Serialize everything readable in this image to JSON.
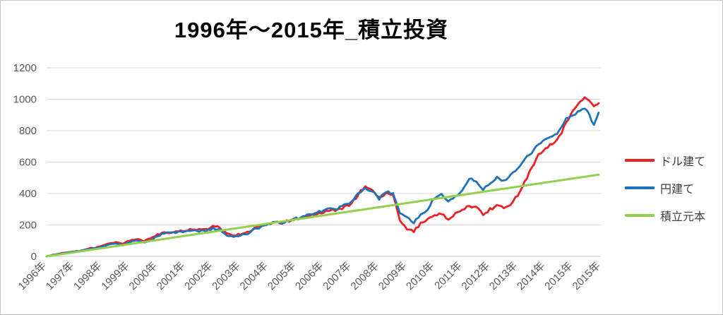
{
  "chart_data": {
    "type": "line",
    "title": "1996年～2015年_積立投資",
    "xlabel": "",
    "ylabel": "",
    "xlim": [
      1996,
      2016
    ],
    "ylim": [
      0,
      1200
    ],
    "y_ticks": [
      0,
      200,
      400,
      600,
      800,
      1000,
      1200
    ],
    "x_tick_labels": [
      "1996年",
      "1997年",
      "1998年",
      "1999年",
      "2000年",
      "2001年",
      "2002年",
      "2003年",
      "2004年",
      "2005年",
      "2006年",
      "2007年",
      "2008年",
      "2009年",
      "2010年",
      "2011年",
      "2012年",
      "2013年",
      "2014年",
      "2015年",
      "2015年"
    ],
    "grid": "horizontal",
    "legend_position": "right",
    "series": [
      {
        "name": "ドル建て",
        "color": "#ed2024",
        "stroke_width": 2.8,
        "noise_amplitude": 9,
        "x": [
          1996,
          1996.25,
          1996.5,
          1996.75,
          1997,
          1997.25,
          1997.5,
          1997.75,
          1998,
          1998.25,
          1998.5,
          1998.75,
          1999,
          1999.25,
          1999.5,
          1999.75,
          2000,
          2000.25,
          2000.5,
          2000.75,
          2001,
          2001.25,
          2001.5,
          2001.75,
          2002,
          2002.25,
          2002.5,
          2002.75,
          2003,
          2003.25,
          2003.5,
          2003.75,
          2004,
          2004.25,
          2004.5,
          2004.75,
          2005,
          2005.25,
          2005.5,
          2005.75,
          2006,
          2006.25,
          2006.5,
          2006.75,
          2007,
          2007.25,
          2007.5,
          2007.75,
          2008,
          2008.25,
          2008.5,
          2008.75,
          2009,
          2009.25,
          2009.5,
          2009.75,
          2010,
          2010.25,
          2010.5,
          2010.75,
          2011,
          2011.25,
          2011.5,
          2011.75,
          2012,
          2012.25,
          2012.5,
          2012.75,
          2013,
          2013.25,
          2013.5,
          2013.75,
          2014,
          2014.25,
          2014.5,
          2014.75,
          2015,
          2015.25,
          2015.5,
          2015.75,
          2015.92
        ],
        "values": [
          0,
          10,
          18,
          25,
          30,
          38,
          50,
          55,
          65,
          80,
          90,
          80,
          100,
          112,
          98,
          110,
          138,
          152,
          150,
          160,
          165,
          175,
          168,
          170,
          192,
          182,
          148,
          135,
          142,
          152,
          178,
          192,
          208,
          218,
          212,
          228,
          238,
          245,
          258,
          268,
          282,
          300,
          292,
          315,
          335,
          395,
          450,
          430,
          370,
          400,
          390,
          230,
          175,
          160,
          210,
          235,
          262,
          272,
          240,
          268,
          292,
          320,
          318,
          268,
          298,
          322,
          305,
          330,
          390,
          470,
          560,
          650,
          690,
          720,
          760,
          850,
          930,
          990,
          1010,
          950,
          975
        ]
      },
      {
        "name": "円建て",
        "color": "#2172b8",
        "stroke_width": 2.8,
        "noise_amplitude": 8,
        "x": [
          1996,
          1996.25,
          1996.5,
          1996.75,
          1997,
          1997.25,
          1997.5,
          1997.75,
          1998,
          1998.25,
          1998.5,
          1998.75,
          1999,
          1999.25,
          1999.5,
          1999.75,
          2000,
          2000.25,
          2000.5,
          2000.75,
          2001,
          2001.25,
          2001.5,
          2001.75,
          2002,
          2002.25,
          2002.5,
          2002.75,
          2003,
          2003.25,
          2003.5,
          2003.75,
          2004,
          2004.25,
          2004.5,
          2004.75,
          2005,
          2005.25,
          2005.5,
          2005.75,
          2006,
          2006.25,
          2006.5,
          2006.75,
          2007,
          2007.25,
          2007.5,
          2007.75,
          2008,
          2008.25,
          2008.5,
          2008.75,
          2009,
          2009.25,
          2009.5,
          2009.75,
          2010,
          2010.25,
          2010.5,
          2010.75,
          2011,
          2011.25,
          2011.5,
          2011.75,
          2012,
          2012.25,
          2012.5,
          2012.75,
          2013,
          2013.25,
          2013.5,
          2013.75,
          2014,
          2014.25,
          2014.5,
          2014.75,
          2015,
          2015.25,
          2015.5,
          2015.75,
          2015.92
        ],
        "values": [
          0,
          9,
          17,
          24,
          30,
          36,
          46,
          50,
          60,
          75,
          82,
          72,
          92,
          100,
          88,
          100,
          130,
          148,
          148,
          155,
          158,
          165,
          160,
          162,
          178,
          172,
          132,
          125,
          135,
          145,
          172,
          188,
          205,
          220,
          215,
          230,
          240,
          250,
          265,
          278,
          295,
          310,
          305,
          325,
          345,
          400,
          435,
          415,
          365,
          415,
          395,
          270,
          248,
          210,
          270,
          300,
          375,
          390,
          345,
          380,
          420,
          495,
          480,
          428,
          470,
          500,
          480,
          520,
          560,
          620,
          660,
          720,
          740,
          760,
          800,
          880,
          900,
          930,
          935,
          830,
          915
        ]
      },
      {
        "name": "積立元本",
        "color": "#92d050",
        "stroke_width": 3,
        "noise_amplitude": 0,
        "x": [
          1996,
          2015.92
        ],
        "values": [
          0,
          520
        ]
      }
    ]
  },
  "style": {
    "gridline_color": "#d9d9d9",
    "zero_line_color": "#c9c9c9",
    "axis_label_color": "#595959",
    "legend_label_color": "#3f3f3f",
    "title_color": "#000000",
    "background": "#ffffff"
  }
}
